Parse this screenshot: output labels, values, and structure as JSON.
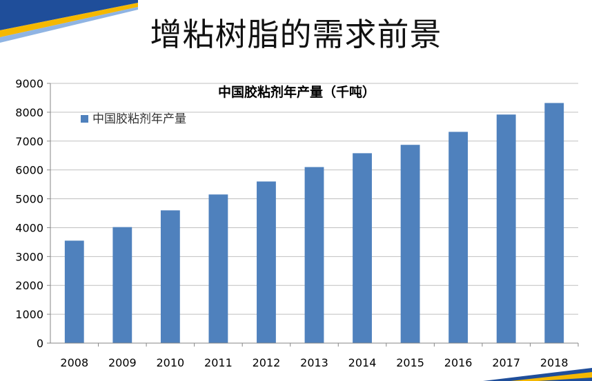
{
  "slide": {
    "title": "增粘树脂的需求前景"
  },
  "colors": {
    "bar": "#4F81BD",
    "grid": "#BFBFBF",
    "axis": "#868686",
    "stripe_blue": "#1F4E9A",
    "stripe_yellow": "#F5B800"
  },
  "chart_data": {
    "type": "bar",
    "title": "中国胶粘剂年产量（千吨）",
    "categories": [
      "2008",
      "2009",
      "2010",
      "2011",
      "2012",
      "2013",
      "2014",
      "2015",
      "2016",
      "2017",
      "2018"
    ],
    "series": [
      {
        "name": "中国胶粘剂年产量",
        "values": [
          3550,
          4020,
          4600,
          5150,
          5600,
          6100,
          6580,
          6870,
          7320,
          7920,
          8320
        ]
      }
    ],
    "ylim": [
      0,
      9000
    ],
    "yticks": [
      0,
      1000,
      2000,
      3000,
      4000,
      5000,
      6000,
      7000,
      8000,
      9000
    ],
    "grid": true,
    "legend_position": "top-left"
  }
}
